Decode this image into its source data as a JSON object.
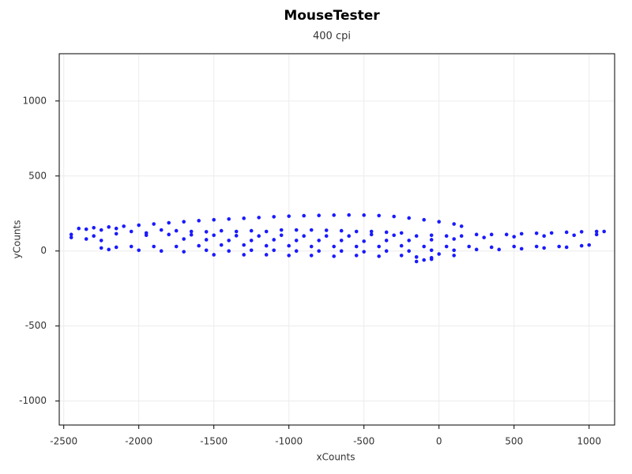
{
  "chart_data": {
    "type": "scatter",
    "title": "MouseTester",
    "subtitle": "400 cpi",
    "x_label": "xCounts",
    "y_label": "yCounts",
    "color": "#1a1aff",
    "grid": true,
    "xlim": [
      -2530,
      1170
    ],
    "ylim": [
      -1160,
      1315
    ],
    "xticks": [
      -2500,
      -2000,
      -1500,
      -1000,
      -500,
      0,
      500,
      1000
    ],
    "yticks": [
      -1000,
      -500,
      0,
      500,
      1000
    ],
    "x": [
      -2400,
      -2300,
      -2200,
      -2100,
      -2000,
      -1900,
      -1800,
      -1700,
      -1600,
      -1500,
      -1400,
      -1300,
      -1200,
      -1100,
      -1000,
      -900,
      -800,
      -700,
      -600,
      -500,
      -400,
      -300,
      -200,
      -100,
      0,
      100,
      150,
      -2350,
      -2250,
      -2150,
      -2050,
      -1950,
      -1850,
      -1750,
      -1650,
      -1550,
      -1450,
      -1350,
      -1250,
      -1150,
      -1050,
      -950,
      -850,
      -750,
      -650,
      -550,
      -450,
      -350,
      -250,
      -2450,
      -2300,
      -2150,
      -1950,
      -1800,
      -1650,
      -1500,
      -1350,
      -1200,
      -1050,
      -900,
      -750,
      -600,
      -450,
      -300,
      -150,
      -50,
      50,
      150,
      250,
      350,
      450,
      550,
      650,
      750,
      850,
      950,
      1050,
      1100,
      -2450,
      -2350,
      -2250,
      -1700,
      -1550,
      -1400,
      -1250,
      -1100,
      -950,
      -800,
      -650,
      -500,
      -350,
      -200,
      -50,
      100,
      300,
      500,
      700,
      900,
      1050,
      -2250,
      -2150,
      -2050,
      -1900,
      -1750,
      -1600,
      -1450,
      -1300,
      -1150,
      -1000,
      -850,
      -700,
      -550,
      -400,
      -250,
      -100,
      50,
      200,
      350,
      500,
      650,
      800,
      950,
      1000,
      -2200,
      -2000,
      -1850,
      -1700,
      -1550,
      -1400,
      -1250,
      -1100,
      -950,
      -800,
      -650,
      -500,
      -350,
      -200,
      -50,
      100,
      250,
      400,
      550,
      700,
      850,
      -1500,
      -1300,
      -1150,
      -1000,
      -850,
      -700,
      -550,
      -400,
      -250,
      -150,
      -50,
      0,
      100,
      -150,
      -100,
      -50
    ],
    "values": [
      150,
      155,
      160,
      165,
      172,
      180,
      188,
      195,
      202,
      208,
      213,
      218,
      223,
      228,
      232,
      235,
      237,
      239,
      240,
      239,
      236,
      230,
      220,
      208,
      195,
      180,
      165,
      145,
      140,
      150,
      130,
      120,
      140,
      135,
      130,
      128,
      135,
      130,
      135,
      130,
      140,
      140,
      140,
      138,
      135,
      130,
      130,
      125,
      120,
      110,
      100,
      115,
      105,
      110,
      108,
      105,
      102,
      100,
      105,
      100,
      100,
      100,
      110,
      105,
      100,
      105,
      100,
      100,
      110,
      110,
      110,
      115,
      118,
      120,
      125,
      128,
      130,
      130,
      90,
      80,
      70,
      80,
      75,
      70,
      70,
      75,
      70,
      70,
      70,
      65,
      70,
      70,
      75,
      80,
      90,
      95,
      100,
      105,
      110,
      20,
      25,
      30,
      30,
      30,
      35,
      40,
      40,
      35,
      35,
      30,
      30,
      30,
      30,
      35,
      30,
      30,
      30,
      25,
      30,
      30,
      30,
      35,
      40,
      10,
      5,
      0,
      -5,
      5,
      0,
      5,
      5,
      0,
      0,
      0,
      -5,
      0,
      0,
      5,
      5,
      10,
      10,
      15,
      20,
      25,
      -25,
      -25,
      -25,
      -30,
      -30,
      -35,
      -30,
      -35,
      -30,
      -40,
      -45,
      -20,
      -30,
      -70,
      -60,
      -55
    ]
  }
}
